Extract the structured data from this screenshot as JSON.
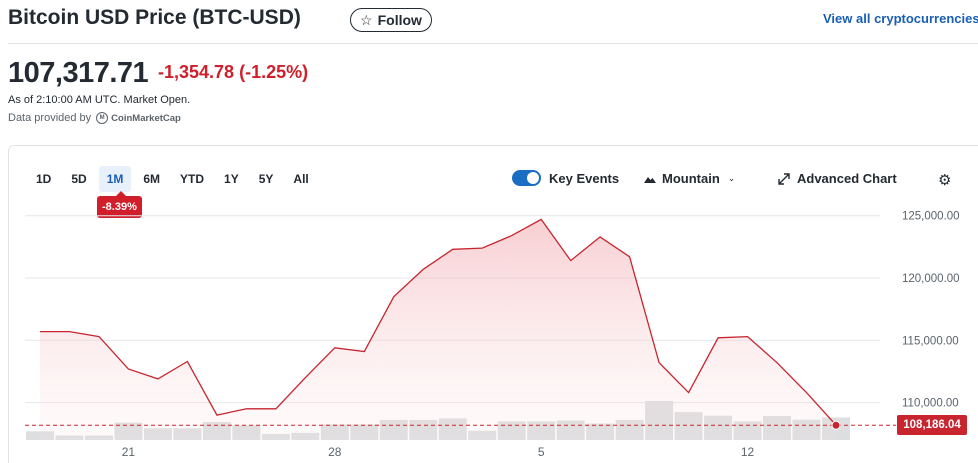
{
  "header": {
    "title": "Bitcoin USD Price (BTC-USD)",
    "follow_label": "Follow",
    "view_all": "View all cryptocurrencies"
  },
  "quote": {
    "price": "107,317.71",
    "change": "-1,354.78",
    "change_pct": "(-1.25%)",
    "as_of": "As of 2:10:00 AM UTC. Market Open.",
    "provided_by": "Data provided by",
    "provider": "CoinMarketCap"
  },
  "toolbar": {
    "ranges": [
      "1D",
      "5D",
      "1M",
      "6M",
      "YTD",
      "1Y",
      "5Y",
      "All"
    ],
    "active_range": "1M",
    "range_change": "-8.39%",
    "key_events_label": "Key Events",
    "key_events_on": true,
    "chart_type_label": "Mountain",
    "advanced_label": "Advanced Chart"
  },
  "colors": {
    "accent": "#1a6dc2",
    "negative": "#d01e2a",
    "line": "#c8252f",
    "volume": "#dcdee0"
  },
  "icons": [
    "star-icon",
    "coinmarketcap-logo",
    "mountain-icon",
    "chevron-down-icon",
    "expand-icon",
    "gear-icon"
  ],
  "chart_data": {
    "type": "area",
    "x_ticks": [
      "21",
      "28",
      "5",
      "12"
    ],
    "y_ticks": [
      "125,000.00",
      "120,000.00",
      "115,000.00",
      "110,000.00"
    ],
    "ylim": [
      107000,
      126500
    ],
    "price_series": [
      115700,
      115700,
      115300,
      112700,
      111900,
      113300,
      109000,
      109500,
      109500,
      112000,
      114400,
      114100,
      118500,
      120700,
      122300,
      122400,
      123400,
      124700,
      121400,
      123300,
      121700,
      113200,
      110800,
      115200,
      115300,
      113200,
      110800,
      108186
    ],
    "volume_relative": [
      0.29,
      0.15,
      0.15,
      0.58,
      0.39,
      0.39,
      0.6,
      0.49,
      0.2,
      0.24,
      0.52,
      0.52,
      0.67,
      0.67,
      0.72,
      0.31,
      0.62,
      0.62,
      0.65,
      0.55,
      0.67,
      1.3,
      0.93,
      0.81,
      0.62,
      0.8,
      0.68,
      0.75
    ],
    "last_price_label": "108,186.04",
    "last_price": 108186.04,
    "grid": true,
    "legend": false
  }
}
